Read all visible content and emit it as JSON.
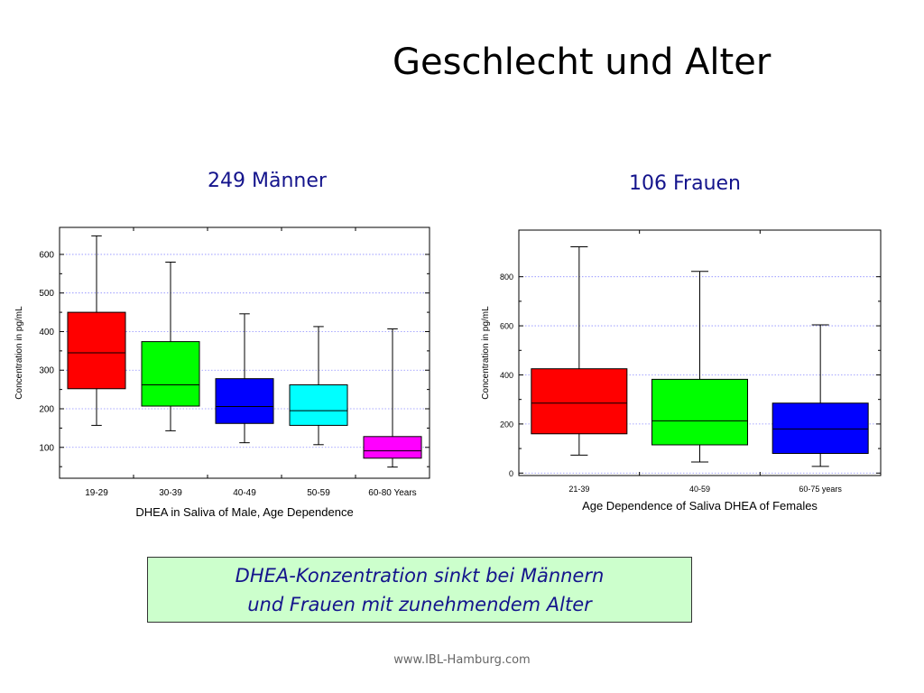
{
  "page": {
    "title": "Geschlecht und Alter",
    "subtitle_left": "249 Männer",
    "subtitle_right": "106 Frauen",
    "note_line1": "DHEA-Konzentration sinkt bei Männern",
    "note_line2": "und Frauen mit zunehmendem Alter",
    "footer": "www.IBL-Hamburg.com"
  },
  "colors": {
    "red": "#ff0000",
    "green": "#00ff00",
    "blue": "#0000ff",
    "cyan": "#00ffff",
    "magenta": "#ff00ff",
    "grid": "#8c8cff",
    "text_blue": "#14148c",
    "note_bg": "#ccffcc"
  },
  "chart_data": [
    {
      "type": "box",
      "xlabel": "DHEA in Saliva of Male, Age Dependence",
      "ylabel": "Concentration in pg/mL",
      "ylim": [
        20,
        670
      ],
      "yticks": [
        100,
        200,
        300,
        400,
        500,
        600
      ],
      "grid": true,
      "categories": [
        "19-29",
        "30-39",
        "40-49",
        "50-59",
        "60-80 Years"
      ],
      "boxes": [
        {
          "min": 157,
          "q1": 252,
          "median": 345,
          "q3": 450,
          "max": 648,
          "color": "#ff0000"
        },
        {
          "min": 143,
          "q1": 207,
          "median": 262,
          "q3": 374,
          "max": 580,
          "color": "#00ff00"
        },
        {
          "min": 112,
          "q1": 162,
          "median": 206,
          "q3": 278,
          "max": 446,
          "color": "#0000ff"
        },
        {
          "min": 107,
          "q1": 157,
          "median": 195,
          "q3": 262,
          "max": 413,
          "color": "#00ffff"
        },
        {
          "min": 49,
          "q1": 72,
          "median": 91,
          "q3": 128,
          "max": 407,
          "color": "#ff00ff"
        }
      ]
    },
    {
      "type": "box",
      "xlabel": "Age Dependence of Saliva DHEA of Females",
      "ylabel": "Concentration in pg/mL",
      "ylim": [
        -10,
        990
      ],
      "yticks": [
        0,
        200,
        400,
        600,
        800
      ],
      "grid": true,
      "categories": [
        "21-39",
        "40-59",
        "60-75 years"
      ],
      "boxes": [
        {
          "min": 73,
          "q1": 160,
          "median": 285,
          "q3": 425,
          "max": 922,
          "color": "#ff0000"
        },
        {
          "min": 45,
          "q1": 115,
          "median": 213,
          "q3": 382,
          "max": 822,
          "color": "#00ff00"
        },
        {
          "min": 27,
          "q1": 80,
          "median": 180,
          "q3": 285,
          "max": 604,
          "color": "#0000ff"
        }
      ]
    }
  ]
}
